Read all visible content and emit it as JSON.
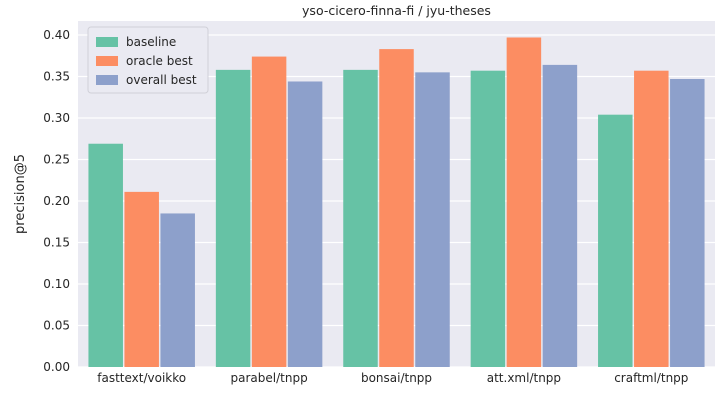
{
  "chart_data": {
    "type": "bar",
    "title": "yso-cicero-finna-fi / jyu-theses",
    "xlabel": "",
    "ylabel": "precision@5",
    "categories": [
      "fasttext/voikko",
      "parabel/tnpp",
      "bonsai/tnpp",
      "att.xml/tnpp",
      "craftml/tnpp"
    ],
    "series": [
      {
        "name": "baseline",
        "color": "#66c2a5",
        "values": [
          0.269,
          0.358,
          0.358,
          0.357,
          0.304
        ]
      },
      {
        "name": "oracle best",
        "color": "#fc8d62",
        "values": [
          0.211,
          0.374,
          0.383,
          0.397,
          0.357
        ]
      },
      {
        "name": "overall best",
        "color": "#8da0cb",
        "values": [
          0.185,
          0.344,
          0.355,
          0.364,
          0.347
        ]
      }
    ],
    "ylim": [
      0,
      0.4
    ],
    "yticks": [
      "0.00",
      "0.05",
      "0.10",
      "0.15",
      "0.20",
      "0.25",
      "0.30",
      "0.35",
      "0.40"
    ],
    "grid": true,
    "background": "#eaeaf2",
    "legend_position": "top-left"
  }
}
